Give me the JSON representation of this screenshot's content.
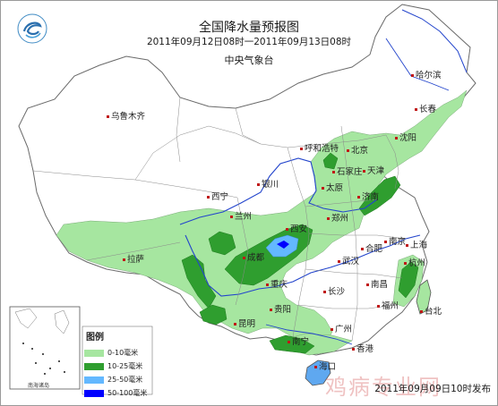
{
  "header": {
    "title": "全国降水量预报图",
    "period": "2011年09月12日08时一2011年09月13日08时",
    "issuer": "中央气象台"
  },
  "cities": [
    "哈尔滨",
    "长春",
    "沈阳",
    "乌鲁木齐",
    "呼和浩特",
    "北京",
    "天津",
    "石家庄",
    "太原",
    "银川",
    "西宁",
    "兰州",
    "济南",
    "郑州",
    "西安",
    "拉萨",
    "成都",
    "合肥",
    "南京",
    "上海",
    "武汉",
    "杭州",
    "重庆",
    "长沙",
    "南昌",
    "贵阳",
    "福州",
    "昆明",
    "台北",
    "广州",
    "南宁",
    "香港",
    "海口"
  ],
  "legend": {
    "title": "图例",
    "items": [
      {
        "label": "0-10毫米",
        "color": "#a6e6a0"
      },
      {
        "label": "10-25毫米",
        "color": "#2f9e2f"
      },
      {
        "label": "25-50毫米",
        "color": "#63b8ff"
      },
      {
        "label": "50-100毫米",
        "color": "#0000ff"
      }
    ]
  },
  "inset": {
    "label": "南海诸岛"
  },
  "issue_time": "2011年09月09日10时发布",
  "watermark": "鸡病专业网"
}
